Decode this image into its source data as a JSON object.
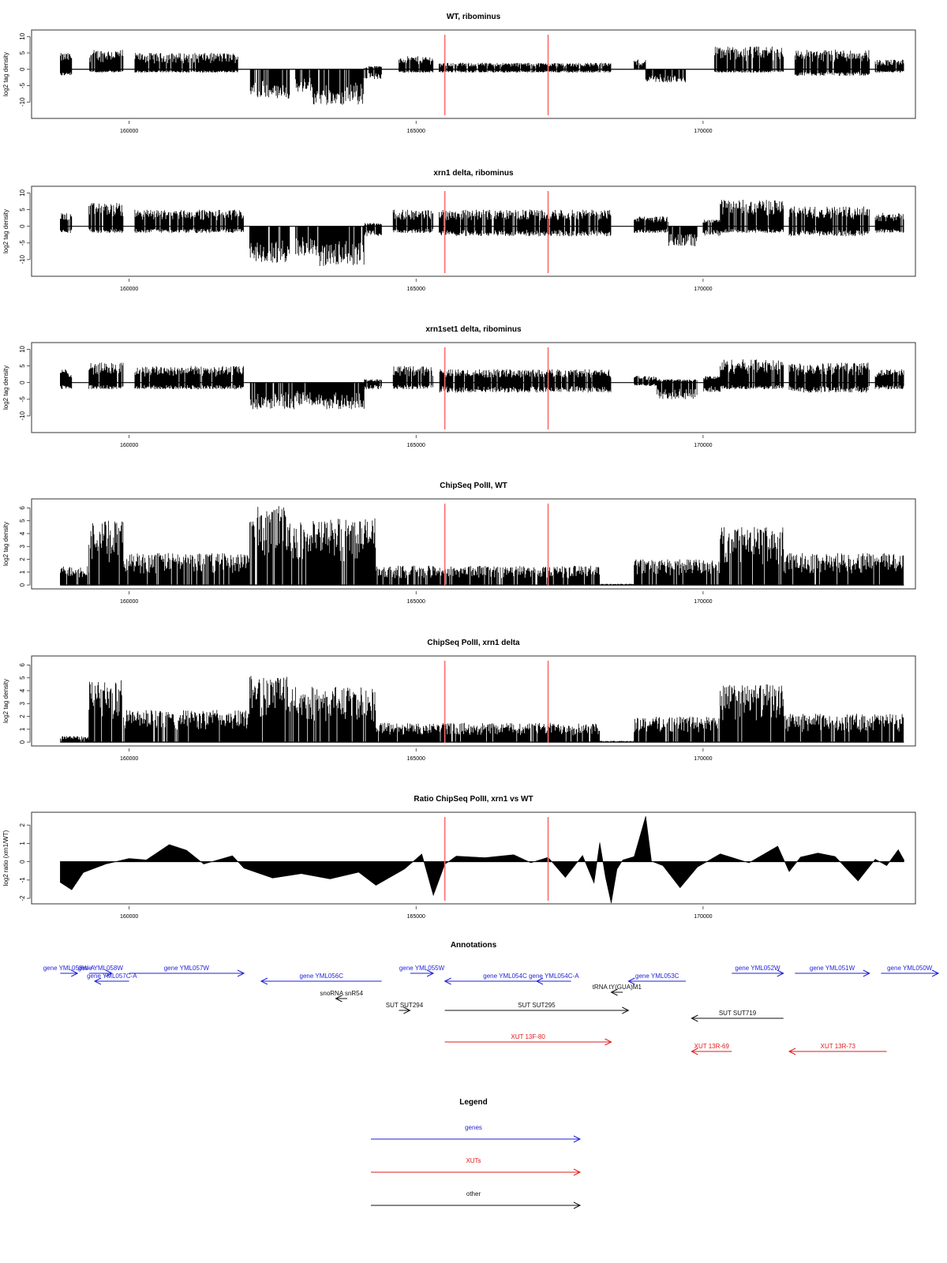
{
  "chart_data": [
    {
      "type": "bar",
      "title": "WT, ribominus",
      "ylabel": "log2 tag density",
      "ylim": [
        -15,
        12
      ],
      "xlim": [
        158300,
        173700
      ],
      "yticks": [
        -10,
        -5,
        0,
        5,
        10
      ],
      "xticks": [
        160000,
        165000,
        170000
      ],
      "grid": false,
      "markers_x": [
        165500,
        167300
      ],
      "profile": [
        {
          "x": [
            158800,
            159000
          ],
          "lo": -2,
          "hi": 5
        },
        {
          "x": [
            159300,
            159900
          ],
          "lo": -1,
          "hi": 6
        },
        {
          "x": [
            160100,
            161900
          ],
          "lo": -1,
          "hi": 5
        },
        {
          "x": [
            162100,
            162800
          ],
          "lo": -9,
          "hi": 0
        },
        {
          "x": [
            162900,
            163200
          ],
          "lo": -7,
          "hi": 0
        },
        {
          "x": [
            163200,
            164100
          ],
          "lo": -11,
          "hi": 0
        },
        {
          "x": [
            164100,
            164400
          ],
          "lo": -3,
          "hi": 1
        },
        {
          "x": [
            164700,
            165300
          ],
          "lo": -1,
          "hi": 4
        },
        {
          "x": [
            165400,
            168400
          ],
          "lo": -1,
          "hi": 2
        },
        {
          "x": [
            168800,
            169000
          ],
          "lo": 0,
          "hi": 3
        },
        {
          "x": [
            169000,
            169700
          ],
          "lo": -4,
          "hi": 0
        },
        {
          "x": [
            170200,
            171400
          ],
          "lo": -1,
          "hi": 7
        },
        {
          "x": [
            171600,
            172900
          ],
          "lo": -2,
          "hi": 6
        },
        {
          "x": [
            173000,
            173500
          ],
          "lo": -1,
          "hi": 3
        }
      ]
    },
    {
      "type": "bar",
      "title": "xrn1 delta, ribominus",
      "ylabel": "log2 tag density",
      "ylim": [
        -15,
        12
      ],
      "xlim": [
        158300,
        173700
      ],
      "yticks": [
        -10,
        -5,
        0,
        5,
        10
      ],
      "xticks": [
        160000,
        165000,
        170000
      ],
      "grid": false,
      "markers_x": [
        165500,
        167300
      ],
      "profile": [
        {
          "x": [
            158800,
            159000
          ],
          "lo": -2,
          "hi": 4
        },
        {
          "x": [
            159300,
            159900
          ],
          "lo": -2,
          "hi": 7
        },
        {
          "x": [
            160100,
            162000
          ],
          "lo": -2,
          "hi": 5
        },
        {
          "x": [
            162100,
            162800
          ],
          "lo": -11,
          "hi": 0
        },
        {
          "x": [
            162900,
            163300
          ],
          "lo": -9,
          "hi": 0
        },
        {
          "x": [
            163300,
            164100
          ],
          "lo": -12,
          "hi": 0
        },
        {
          "x": [
            164100,
            164400
          ],
          "lo": -3,
          "hi": 1
        },
        {
          "x": [
            164600,
            165300
          ],
          "lo": -2,
          "hi": 5
        },
        {
          "x": [
            165400,
            168400
          ],
          "lo": -3,
          "hi": 5
        },
        {
          "x": [
            168800,
            169400
          ],
          "lo": -2,
          "hi": 3
        },
        {
          "x": [
            169400,
            169900
          ],
          "lo": -6,
          "hi": 0
        },
        {
          "x": [
            170000,
            170300
          ],
          "lo": -3,
          "hi": 2
        },
        {
          "x": [
            170300,
            171400
          ],
          "lo": -2,
          "hi": 8
        },
        {
          "x": [
            171500,
            172900
          ],
          "lo": -3,
          "hi": 6
        },
        {
          "x": [
            173000,
            173500
          ],
          "lo": -2,
          "hi": 4
        }
      ]
    },
    {
      "type": "bar",
      "title": "xrn1set1 delta, ribominus",
      "ylabel": "log2 tag density",
      "ylim": [
        -15,
        12
      ],
      "xlim": [
        158300,
        173700
      ],
      "yticks": [
        -10,
        -5,
        0,
        5,
        10
      ],
      "xticks": [
        160000,
        165000,
        170000
      ],
      "grid": false,
      "markers_x": [
        165500,
        167300
      ],
      "profile": [
        {
          "x": [
            158800,
            159000
          ],
          "lo": -2,
          "hi": 4
        },
        {
          "x": [
            159300,
            159900
          ],
          "lo": -2,
          "hi": 6
        },
        {
          "x": [
            160100,
            162000
          ],
          "lo": -2,
          "hi": 5
        },
        {
          "x": [
            162100,
            162900
          ],
          "lo": -8,
          "hi": 0
        },
        {
          "x": [
            162900,
            163400
          ],
          "lo": -7,
          "hi": 0
        },
        {
          "x": [
            163400,
            164100
          ],
          "lo": -8,
          "hi": 0
        },
        {
          "x": [
            164100,
            164400
          ],
          "lo": -2,
          "hi": 1
        },
        {
          "x": [
            164600,
            165300
          ],
          "lo": -2,
          "hi": 5
        },
        {
          "x": [
            165400,
            168400
          ],
          "lo": -3,
          "hi": 4
        },
        {
          "x": [
            168800,
            169200
          ],
          "lo": -1,
          "hi": 2
        },
        {
          "x": [
            169200,
            169900
          ],
          "lo": -5,
          "hi": 1
        },
        {
          "x": [
            170000,
            170300
          ],
          "lo": -3,
          "hi": 2
        },
        {
          "x": [
            170300,
            171400
          ],
          "lo": -2,
          "hi": 7
        },
        {
          "x": [
            171500,
            172900
          ],
          "lo": -3,
          "hi": 6
        },
        {
          "x": [
            173000,
            173500
          ],
          "lo": -2,
          "hi": 4
        }
      ]
    },
    {
      "type": "bar",
      "title": "ChipSeq PolII, WT",
      "ylabel": "log2 tag density",
      "ylim": [
        -0.3,
        6.7
      ],
      "xlim": [
        158300,
        173700
      ],
      "yticks": [
        0,
        1,
        2,
        3,
        4,
        5,
        6
      ],
      "xticks": [
        160000,
        165000,
        170000
      ],
      "grid": false,
      "markers_x": [
        165500,
        167300
      ],
      "profile": [
        {
          "x": [
            158800,
            159300
          ],
          "lo": 0,
          "hi": 1.5
        },
        {
          "x": [
            159300,
            159900
          ],
          "lo": 0,
          "hi": 5
        },
        {
          "x": [
            159900,
            162100
          ],
          "lo": 0,
          "hi": 2.5
        },
        {
          "x": [
            162100,
            162800
          ],
          "lo": 0,
          "hi": 6.2
        },
        {
          "x": [
            162800,
            163500
          ],
          "lo": 0,
          "hi": 5
        },
        {
          "x": [
            163500,
            164300
          ],
          "lo": 0,
          "hi": 5.2
        },
        {
          "x": [
            164300,
            168200
          ],
          "lo": 0,
          "hi": 1.5
        },
        {
          "x": [
            168200,
            168800
          ],
          "lo": 0,
          "hi": 0.1
        },
        {
          "x": [
            168800,
            170300
          ],
          "lo": 0,
          "hi": 2
        },
        {
          "x": [
            170300,
            171400
          ],
          "lo": 0,
          "hi": 4.5
        },
        {
          "x": [
            171400,
            173500
          ],
          "lo": 0,
          "hi": 2.5
        }
      ]
    },
    {
      "type": "bar",
      "title": "ChipSeq PolII, xrn1 delta",
      "ylabel": "log2 tag density",
      "ylim": [
        -0.3,
        6.7
      ],
      "xlim": [
        158300,
        173700
      ],
      "yticks": [
        0,
        1,
        2,
        3,
        4,
        5,
        6
      ],
      "xticks": [
        160000,
        165000,
        170000
      ],
      "grid": false,
      "markers_x": [
        165500,
        167300
      ],
      "profile": [
        {
          "x": [
            158800,
            159300
          ],
          "lo": 0,
          "hi": 0.5
        },
        {
          "x": [
            159300,
            159900
          ],
          "lo": 0,
          "hi": 4.8
        },
        {
          "x": [
            159900,
            162100
          ],
          "lo": 0,
          "hi": 2.5
        },
        {
          "x": [
            162100,
            162800
          ],
          "lo": 0,
          "hi": 5.2
        },
        {
          "x": [
            162800,
            163500
          ],
          "lo": 0,
          "hi": 4.3
        },
        {
          "x": [
            163500,
            164300
          ],
          "lo": 0,
          "hi": 4.3
        },
        {
          "x": [
            164300,
            168200
          ],
          "lo": 0,
          "hi": 1.5
        },
        {
          "x": [
            168200,
            168800
          ],
          "lo": 0,
          "hi": 0.1
        },
        {
          "x": [
            168800,
            170300
          ],
          "lo": 0,
          "hi": 2
        },
        {
          "x": [
            170300,
            171400
          ],
          "lo": 0,
          "hi": 4.5
        },
        {
          "x": [
            171400,
            173500
          ],
          "lo": 0,
          "hi": 2.2
        }
      ]
    },
    {
      "type": "area",
      "title": "Ratio ChipSeq PolII, xrn1 vs WT",
      "ylabel": "log2 ratio (xrn1/WT)",
      "ylim": [
        -2.3,
        2.7
      ],
      "xlim": [
        158300,
        173700
      ],
      "yticks": [
        -2,
        -1,
        0,
        1,
        2
      ],
      "xticks": [
        160000,
        165000,
        170000
      ],
      "grid": false,
      "markers_x": [
        165500,
        167300
      ],
      "x": [
        158800,
        159000,
        159200,
        159600,
        160000,
        160300,
        160700,
        161000,
        161300,
        161800,
        162000,
        162500,
        163000,
        163500,
        164000,
        164300,
        164800,
        165100,
        165300,
        165500,
        165700,
        166200,
        166700,
        167000,
        167300,
        167600,
        167900,
        168100,
        168200,
        168300,
        168400,
        168500,
        168600,
        168800,
        169000,
        169100,
        169300,
        169600,
        169900,
        170300,
        170800,
        171300,
        171500,
        171700,
        172000,
        172300,
        172700,
        173000,
        173200,
        173400,
        173500
      ],
      "y": [
        -1.2,
        -1.5,
        -0.6,
        -0.1,
        0.2,
        0.1,
        1.0,
        0.6,
        -0.2,
        0.3,
        -0.3,
        -0.9,
        -0.7,
        -0.9,
        -0.6,
        -1.3,
        -0.4,
        0.4,
        -1.8,
        -0.2,
        0.3,
        0.2,
        0.4,
        -0.1,
        0.2,
        -0.8,
        0.3,
        -1.2,
        1.0,
        -0.8,
        -2.2,
        -0.4,
        0.1,
        0.3,
        2.5,
        0.1,
        -0.2,
        -1.5,
        -0.3,
        0.4,
        -0.1,
        0.9,
        -0.6,
        0.2,
        0.4,
        0.3,
        -1.0,
        0.2,
        -0.2,
        0.7,
        0.1
      ]
    }
  ],
  "annotations": {
    "title": "Annotations",
    "items": [
      {
        "label": "gene YML058W-A",
        "kind": "genes",
        "start": 158800,
        "end": 159100,
        "row": 0
      },
      {
        "label": "gene YML058W",
        "kind": "genes",
        "start": 159300,
        "end": 159700,
        "row": 0
      },
      {
        "label": "gene YML057C-A",
        "kind": "genes",
        "start": 160000,
        "end": 159400,
        "row": 1
      },
      {
        "label": "gene YML057W",
        "kind": "genes",
        "start": 160000,
        "end": 162000,
        "row": 0
      },
      {
        "label": "gene YML056C",
        "kind": "genes",
        "start": 164400,
        "end": 162300,
        "row": 1
      },
      {
        "label": "gene YML055W",
        "kind": "genes",
        "start": 164900,
        "end": 165300,
        "row": 0
      },
      {
        "label": "gene YML054C",
        "kind": "genes",
        "start": 167600,
        "end": 165500,
        "row": 1
      },
      {
        "label": "gene YML054C-A",
        "kind": "genes",
        "start": 167700,
        "end": 167100,
        "row": 1
      },
      {
        "label": "gene YML053C",
        "kind": "genes",
        "start": 169700,
        "end": 168700,
        "row": 1
      },
      {
        "label": "gene YML052W",
        "kind": "genes",
        "start": 170500,
        "end": 171400,
        "row": 0
      },
      {
        "label": "gene YML051W",
        "kind": "genes",
        "start": 171600,
        "end": 172900,
        "row": 0
      },
      {
        "label": "gene YML050W",
        "kind": "genes",
        "start": 173100,
        "end": 174100,
        "row": 0
      },
      {
        "label": "tRNA tY(GUA)M1",
        "kind": "other",
        "start": 168600,
        "end": 168400,
        "row": 2
      },
      {
        "label": "snoRNA snR54",
        "kind": "other",
        "start": 163800,
        "end": 163600,
        "row": 3
      },
      {
        "label": "SUT SUT294",
        "kind": "other",
        "start": 164700,
        "end": 164800,
        "row": 4
      },
      {
        "label": "SUT SUT295",
        "kind": "other",
        "start": 165500,
        "end": 168700,
        "row": 4
      },
      {
        "label": "SUT SUT719",
        "kind": "other",
        "start": 171400,
        "end": 169800,
        "row": 5
      },
      {
        "label": "XUT 13F-80",
        "kind": "XUTs",
        "start": 165500,
        "end": 168400,
        "row": 6
      },
      {
        "label": "XUT 13R-69",
        "kind": "XUTs",
        "start": 170500,
        "end": 169800,
        "row": 7
      },
      {
        "label": "XUT 13R-73",
        "kind": "XUTs",
        "start": 173200,
        "end": 171500,
        "row": 7
      }
    ]
  },
  "legend": {
    "title": "Legend",
    "entries": [
      {
        "label": "genes",
        "kind": "genes"
      },
      {
        "label": "XUTs",
        "kind": "XUTs"
      },
      {
        "label": "other",
        "kind": "other"
      }
    ]
  },
  "colors": {
    "genes": "#1f1fd9",
    "XUTs": "#e01b1b",
    "other": "#111111",
    "marker": "#ff6a6a",
    "data": "#000000",
    "axis": "#333333"
  }
}
